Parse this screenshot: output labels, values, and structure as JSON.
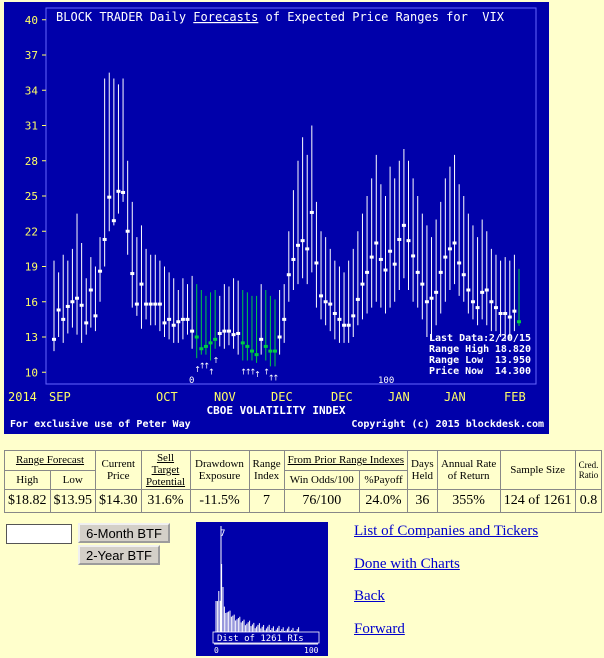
{
  "chart_data": {
    "type": "range_bar",
    "title_parts": [
      "BLOCK TRADER Daily ",
      "Forecasts",
      " of Expected Price Ranges for  VIX"
    ],
    "ylim": [
      9,
      41
    ],
    "yticks": [
      10,
      13,
      16,
      19,
      22,
      25,
      28,
      31,
      34,
      37,
      40
    ],
    "x_labels": [
      "2014",
      "SEP",
      "OCT",
      "NOV",
      "DEC",
      "DEC",
      "JAN",
      "JAN",
      "FEB"
    ],
    "subtitle": "CBOE VOLATILITY INDEX",
    "footer_left": "For exclusive use of Peter Way",
    "footer_right": "Copyright (c) 2015 blockdesk.com",
    "marker_zero": "0",
    "marker_hundred": "100",
    "info": [
      {
        "label": "Last Data:",
        "value": "2/20/15"
      },
      {
        "label": "Range High",
        "value": "18.820"
      },
      {
        "label": "Range Low",
        "value": "13.950"
      },
      {
        "label": "Price Now",
        "value": "14.300"
      }
    ],
    "series": [
      [
        19.5,
        11.8,
        12.8,
        "w"
      ],
      [
        18.5,
        13.0,
        15.3,
        "w"
      ],
      [
        20.0,
        12.5,
        14.5,
        "w"
      ],
      [
        19.5,
        13.3,
        15.6,
        "w"
      ],
      [
        20.5,
        13.8,
        16.0,
        "w"
      ],
      [
        23.5,
        13.2,
        16.3,
        "w"
      ],
      [
        21.0,
        12.5,
        15.7,
        "w"
      ],
      [
        18.0,
        13.2,
        14.2,
        "w"
      ],
      [
        19.8,
        13.8,
        17.0,
        "w"
      ],
      [
        19.0,
        13.5,
        14.8,
        "w"
      ],
      [
        21.5,
        16.0,
        18.6,
        "w"
      ],
      [
        35.0,
        19.0,
        21.3,
        "w"
      ],
      [
        35.5,
        22.0,
        24.9,
        "w"
      ],
      [
        35.0,
        22.5,
        22.9,
        "w"
      ],
      [
        34.5,
        23.5,
        25.4,
        "w"
      ],
      [
        35.0,
        24.5,
        25.3,
        "w"
      ],
      [
        28.0,
        20.0,
        22.0,
        "w"
      ],
      [
        24.5,
        15.5,
        18.4,
        "w"
      ],
      [
        21.5,
        14.8,
        15.8,
        "w"
      ],
      [
        22.5,
        13.7,
        17.5,
        "w"
      ],
      [
        20.5,
        14.5,
        15.8,
        "w"
      ],
      [
        20.0,
        14.0,
        15.8,
        "w"
      ],
      [
        20.0,
        14.0,
        15.8,
        "w"
      ],
      [
        19.5,
        13.5,
        15.8,
        "w"
      ],
      [
        19.0,
        13.0,
        14.2,
        "w"
      ],
      [
        18.5,
        12.8,
        14.5,
        "w"
      ],
      [
        18.0,
        12.5,
        14.0,
        "w"
      ],
      [
        17.0,
        12.5,
        14.3,
        "w"
      ],
      [
        18.0,
        12.8,
        14.5,
        "w"
      ],
      [
        17.5,
        13.2,
        14.5,
        "w"
      ],
      [
        18.2,
        12.0,
        13.5,
        "w"
      ],
      [
        17.5,
        11.2,
        13.0,
        "g"
      ],
      [
        17.0,
        11.5,
        12.0,
        "g"
      ],
      [
        16.5,
        11.5,
        12.2,
        "g"
      ],
      [
        16.8,
        11.0,
        12.5,
        "g"
      ],
      [
        17.0,
        12.0,
        12.8,
        "g"
      ],
      [
        16.5,
        12.2,
        13.3,
        "w"
      ],
      [
        17.5,
        12.0,
        13.5,
        "w"
      ],
      [
        17.3,
        12.3,
        13.5,
        "w"
      ],
      [
        18.0,
        12.0,
        13.2,
        "w"
      ],
      [
        17.8,
        11.5,
        13.3,
        "w"
      ],
      [
        17.0,
        11.0,
        12.5,
        "g"
      ],
      [
        16.8,
        11.0,
        12.2,
        "g"
      ],
      [
        16.5,
        11.0,
        11.8,
        "g"
      ],
      [
        16.5,
        10.8,
        11.5,
        "g"
      ],
      [
        17.5,
        11.5,
        12.8,
        "w"
      ],
      [
        17.0,
        11.0,
        12.2,
        "g"
      ],
      [
        16.5,
        10.5,
        11.8,
        "g"
      ],
      [
        16.2,
        10.5,
        11.8,
        "g"
      ],
      [
        17.0,
        11.5,
        13.0,
        "w"
      ],
      [
        17.5,
        12.5,
        14.5,
        "w"
      ],
      [
        22.0,
        16.0,
        18.3,
        "w"
      ],
      [
        25.5,
        17.0,
        19.6,
        "w"
      ],
      [
        28.0,
        17.5,
        20.8,
        "w"
      ],
      [
        30.0,
        18.0,
        21.2,
        "w"
      ],
      [
        28.5,
        17.5,
        20.5,
        "w"
      ],
      [
        31.0,
        18.5,
        23.6,
        "w"
      ],
      [
        24.5,
        15.5,
        19.3,
        "w"
      ],
      [
        22.0,
        14.5,
        16.5,
        "w"
      ],
      [
        21.5,
        14.0,
        16.0,
        "w"
      ],
      [
        20.5,
        13.5,
        15.8,
        "w"
      ],
      [
        19.5,
        12.8,
        15.0,
        "w"
      ],
      [
        19.0,
        12.5,
        14.5,
        "w"
      ],
      [
        18.5,
        12.5,
        14.0,
        "w"
      ],
      [
        19.5,
        12.5,
        14.0,
        "w"
      ],
      [
        20.5,
        13.0,
        14.8,
        "w"
      ],
      [
        22.0,
        14.0,
        16.2,
        "w"
      ],
      [
        23.5,
        14.5,
        17.5,
        "w"
      ],
      [
        25.0,
        15.0,
        18.5,
        "w"
      ],
      [
        26.5,
        15.5,
        19.8,
        "w"
      ],
      [
        28.5,
        16.0,
        21.0,
        "w"
      ],
      [
        26.0,
        15.5,
        19.6,
        "w"
      ],
      [
        25.0,
        15.0,
        18.7,
        "w"
      ],
      [
        27.5,
        15.5,
        20.3,
        "w"
      ],
      [
        26.5,
        16.0,
        19.2,
        "w"
      ],
      [
        28.0,
        17.0,
        21.3,
        "w"
      ],
      [
        29.0,
        18.0,
        22.5,
        "w"
      ],
      [
        28.0,
        17.0,
        21.2,
        "w"
      ],
      [
        26.5,
        16.0,
        19.9,
        "w"
      ],
      [
        25.0,
        15.5,
        18.5,
        "w"
      ],
      [
        23.5,
        14.5,
        17.5,
        "w"
      ],
      [
        22.5,
        13.0,
        16.0,
        "w"
      ],
      [
        21.5,
        12.8,
        16.3,
        "w"
      ],
      [
        23.0,
        14.0,
        16.8,
        "w"
      ],
      [
        24.5,
        15.0,
        18.5,
        "w"
      ],
      [
        26.5,
        16.0,
        19.8,
        "w"
      ],
      [
        27.5,
        17.0,
        20.5,
        "w"
      ],
      [
        28.5,
        17.5,
        21.0,
        "w"
      ],
      [
        26.0,
        16.5,
        19.3,
        "w"
      ],
      [
        25.0,
        16.0,
        18.3,
        "w"
      ],
      [
        23.5,
        15.0,
        17.0,
        "w"
      ],
      [
        22.5,
        14.5,
        16.0,
        "w"
      ],
      [
        21.5,
        14.0,
        15.5,
        "w"
      ],
      [
        23.0,
        14.5,
        16.8,
        "w"
      ],
      [
        22.0,
        14.0,
        17.0,
        "w"
      ],
      [
        20.5,
        13.5,
        16.0,
        "w"
      ],
      [
        20.0,
        13.5,
        15.5,
        "w"
      ],
      [
        19.5,
        13.0,
        15.0,
        "w"
      ],
      [
        19.8,
        12.8,
        15.0,
        "w"
      ],
      [
        19.5,
        12.8,
        14.7,
        "w"
      ],
      [
        20.0,
        13.5,
        15.2,
        "w"
      ],
      [
        18.8,
        13.95,
        14.3,
        "g"
      ]
    ]
  },
  "table": {
    "groups": [
      {
        "label": "Range Forecast",
        "underline": true,
        "colspan": 2
      },
      {
        "label": "Current Price",
        "underline": false,
        "colspan": 1
      },
      {
        "label": "Sell Target Potential",
        "underline": true,
        "colspan": 1
      },
      {
        "label": "Drawdown Exposure",
        "underline": false,
        "colspan": 1
      },
      {
        "label": "Range Index",
        "underline": false,
        "colspan": 1
      },
      {
        "label": "From Prior Range Indexes",
        "underline": true,
        "colspan": 2
      },
      {
        "label": "Days Held",
        "underline": false,
        "colspan": 1
      },
      {
        "label": "Annual Rate of Return",
        "underline": false,
        "colspan": 1
      },
      {
        "label": "Sample Size",
        "underline": false,
        "colspan": 1
      },
      {
        "label": "Cred. Ratio",
        "underline": false,
        "colspan": 1
      }
    ],
    "subheaders": [
      "High",
      "Low",
      "Win Odds/100",
      "%Payoff"
    ],
    "values": [
      "$18.82",
      "$13.95",
      "$14.30",
      "31.6%",
      "-11.5%",
      "7",
      "76/100",
      "24.0%",
      "36",
      "355%",
      "124 of 1261",
      "0.8"
    ]
  },
  "controls": {
    "ticker_value": "",
    "btn_6m": "6-Month BTF",
    "btn_2y": "2-Year BTF"
  },
  "histogram": {
    "label": "Dist of 1261 RIs",
    "marker": "7",
    "axis_start": "0",
    "axis_end": "100"
  },
  "links": [
    "List of Companies and Tickers",
    "Done with Charts",
    "Back",
    "Forward"
  ],
  "colors": {
    "chart_bg": "#0000aa",
    "axis_text": "#ffff66",
    "bar": "#ffffff",
    "bar_green": "#00cc44",
    "page_bg": "#ffffcc",
    "link": "#0000cc"
  }
}
